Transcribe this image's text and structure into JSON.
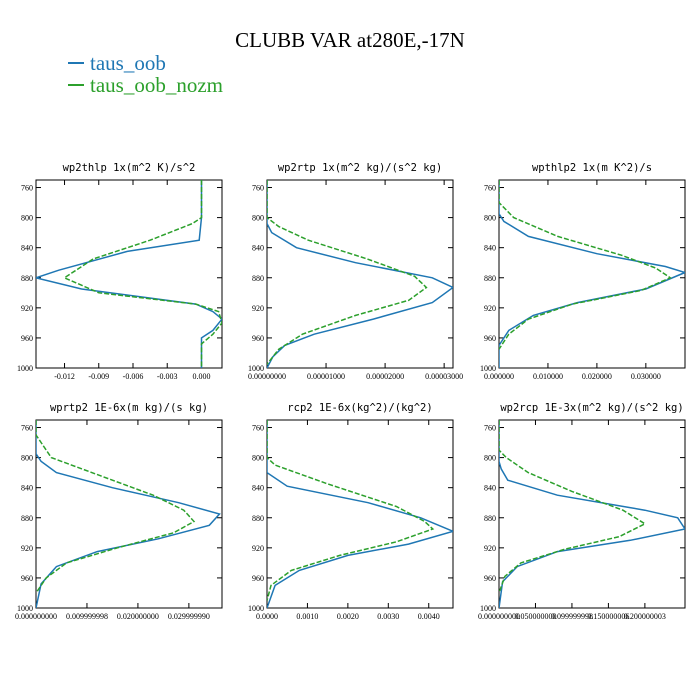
{
  "title": "CLUBB VAR at280E,-17N",
  "colors": {
    "taus_oob": "#1f77b4",
    "taus_oob_nozm": "#2ca02c"
  },
  "legend": [
    {
      "label": "taus_oob",
      "color": "#1f77b4",
      "style": "solid"
    },
    {
      "label": "taus_oob_nozm",
      "color": "#2ca02c",
      "style": "dashed"
    }
  ],
  "chart_data": [
    {
      "type": "line",
      "title": "wp2thlp  1x(m^2 K)/s^2",
      "y_ticks": [
        760,
        800,
        840,
        880,
        920,
        960,
        1000
      ],
      "x_ticks": [
        "-0.012",
        "-0.009",
        "-0.006",
        "-0.003",
        "0.000"
      ],
      "x_tick_values": [
        -0.012,
        -0.009,
        -0.006,
        -0.003,
        0.0
      ],
      "xlim": [
        -0.0145,
        0.0018
      ],
      "ylim": [
        1000,
        750
      ],
      "series": [
        {
          "name": "taus_oob",
          "points": [
            [
              0.0,
              750
            ],
            [
              0.0,
              800
            ],
            [
              -0.0002,
              830
            ],
            [
              -0.0065,
              845
            ],
            [
              -0.0125,
              870
            ],
            [
              -0.0145,
              880
            ],
            [
              -0.0105,
              895
            ],
            [
              -0.0005,
              915
            ],
            [
              0.001,
              925
            ],
            [
              0.0018,
              935
            ],
            [
              0.001,
              950
            ],
            [
              0.0,
              960
            ],
            [
              0.0,
              1000
            ]
          ]
        },
        {
          "name": "taus_oob_nozm",
          "points": [
            [
              0.0,
              750
            ],
            [
              0.0,
              800
            ],
            [
              -0.0008,
              808
            ],
            [
              -0.0045,
              830
            ],
            [
              -0.0095,
              855
            ],
            [
              -0.012,
              880
            ],
            [
              -0.009,
              900
            ],
            [
              -0.0005,
              915
            ],
            [
              0.0015,
              925
            ],
            [
              0.0018,
              940
            ],
            [
              0.001,
              955
            ],
            [
              0.0,
              968
            ],
            [
              0.0,
              1000
            ]
          ]
        }
      ]
    },
    {
      "type": "line",
      "title": "wp2rtp  1x(m^2 kg)/(s^2 kg)",
      "y_ticks": [
        760,
        800,
        840,
        880,
        920,
        960,
        1000
      ],
      "x_ticks": [
        "0.00000000",
        "0.00001000",
        "0.00002000",
        "0.00003000"
      ],
      "x_tick_values": [
        0.0,
        1e-05,
        2e-05,
        3e-05
      ],
      "xlim": [
        0.0,
        3.15e-05
      ],
      "ylim": [
        1000,
        750
      ],
      "series": [
        {
          "name": "taus_oob",
          "points": [
            [
              0.0,
              750
            ],
            [
              0.0,
              808
            ],
            [
              8e-07,
              820
            ],
            [
              5e-06,
              840
            ],
            [
              1.5e-05,
              860
            ],
            [
              2.8e-05,
              880
            ],
            [
              3.15e-05,
              893
            ],
            [
              2.8e-05,
              913
            ],
            [
              1.8e-05,
              935
            ],
            [
              8e-06,
              955
            ],
            [
              3e-06,
              970
            ],
            [
              1e-06,
              985
            ],
            [
              0.0,
              1000
            ]
          ]
        },
        {
          "name": "taus_oob_nozm",
          "points": [
            [
              0.0,
              750
            ],
            [
              0.0,
              800
            ],
            [
              2e-06,
              812
            ],
            [
              7e-06,
              830
            ],
            [
              1.7e-05,
              855
            ],
            [
              2.5e-05,
              878
            ],
            [
              2.7e-05,
              893
            ],
            [
              2.4e-05,
              910
            ],
            [
              1.5e-05,
              930
            ],
            [
              6e-06,
              955
            ],
            [
              2e-06,
              975
            ],
            [
              0.0,
              995
            ]
          ]
        }
      ]
    },
    {
      "type": "line",
      "title": "wpthlp2  1x(m K^2)/s",
      "y_ticks": [
        760,
        800,
        840,
        880,
        920,
        960,
        1000
      ],
      "x_ticks": [
        "0.000000",
        "0.010000",
        "0.020000",
        "0.030000"
      ],
      "x_tick_values": [
        0.0,
        0.01,
        0.02,
        0.03
      ],
      "xlim": [
        0.0,
        0.038
      ],
      "ylim": [
        1000,
        750
      ],
      "series": [
        {
          "name": "taus_oob",
          "points": [
            [
              0.0,
              750
            ],
            [
              0.0,
              795
            ],
            [
              0.001,
              805
            ],
            [
              0.006,
              825
            ],
            [
              0.02,
              848
            ],
            [
              0.034,
              865
            ],
            [
              0.038,
              873
            ],
            [
              0.03,
              895
            ],
            [
              0.016,
              913
            ],
            [
              0.007,
              930
            ],
            [
              0.002,
              950
            ],
            [
              0.0,
              970
            ],
            [
              0.0,
              1000
            ]
          ]
        },
        {
          "name": "taus_oob_nozm",
          "points": [
            [
              0.0,
              750
            ],
            [
              0.0,
              780
            ],
            [
              0.003,
              800
            ],
            [
              0.012,
              825
            ],
            [
              0.025,
              850
            ],
            [
              0.032,
              867
            ],
            [
              0.035,
              880
            ],
            [
              0.029,
              897
            ],
            [
              0.015,
              915
            ],
            [
              0.006,
              935
            ],
            [
              0.002,
              955
            ],
            [
              0.0,
              975
            ]
          ]
        }
      ]
    },
    {
      "type": "line",
      "title": "wprtp2  1E-6x(m kg)/(s kg)",
      "y_ticks": [
        760,
        800,
        840,
        880,
        920,
        960,
        1000
      ],
      "x_ticks": [
        "0.000000000",
        "0.009999998",
        "0.020000000",
        "0.029999990"
      ],
      "x_tick_values": [
        0.0,
        0.009999998,
        0.02,
        0.02999999
      ],
      "xlim": [
        0.0,
        0.0365
      ],
      "ylim": [
        1000,
        750
      ],
      "series": [
        {
          "name": "taus_oob",
          "points": [
            [
              0.0,
              750
            ],
            [
              0.0,
              795
            ],
            [
              0.001,
              805
            ],
            [
              0.004,
              820
            ],
            [
              0.015,
              840
            ],
            [
              0.028,
              860
            ],
            [
              0.036,
              875
            ],
            [
              0.034,
              890
            ],
            [
              0.024,
              908
            ],
            [
              0.012,
              925
            ],
            [
              0.004,
              945
            ],
            [
              0.001,
              968
            ],
            [
              0.0,
              1000
            ]
          ]
        },
        {
          "name": "taus_oob_nozm",
          "points": [
            [
              0.0,
              750
            ],
            [
              0.0,
              770
            ],
            [
              0.003,
              800
            ],
            [
              0.013,
              825
            ],
            [
              0.023,
              850
            ],
            [
              0.029,
              870
            ],
            [
              0.031,
              885
            ],
            [
              0.027,
              900
            ],
            [
              0.016,
              920
            ],
            [
              0.006,
              940
            ],
            [
              0.002,
              960
            ],
            [
              0.0,
              980
            ]
          ]
        }
      ]
    },
    {
      "type": "line",
      "title": "rcp2  1E-6x(kg^2)/(kg^2)",
      "y_ticks": [
        760,
        800,
        840,
        880,
        920,
        960,
        1000
      ],
      "x_ticks": [
        "0.0000",
        "0.0010",
        "0.0020",
        "0.0030",
        "0.0040"
      ],
      "x_tick_values": [
        0.0,
        0.001,
        0.002,
        0.003,
        0.004
      ],
      "xlim": [
        0.0,
        0.0046
      ],
      "ylim": [
        1000,
        750
      ],
      "series": [
        {
          "name": "taus_oob",
          "points": [
            [
              0.0,
              750
            ],
            [
              0.0,
              820
            ],
            [
              0.0005,
              838
            ],
            [
              0.0025,
              860
            ],
            [
              0.0038,
              880
            ],
            [
              0.0046,
              898
            ],
            [
              0.0035,
              915
            ],
            [
              0.002,
              930
            ],
            [
              0.0008,
              950
            ],
            [
              0.0002,
              970
            ],
            [
              0.0,
              1000
            ]
          ]
        },
        {
          "name": "taus_oob_nozm",
          "points": [
            [
              0.0,
              750
            ],
            [
              0.0,
              800
            ],
            [
              0.0002,
              810
            ],
            [
              0.0015,
              835
            ],
            [
              0.0032,
              865
            ],
            [
              0.0039,
              885
            ],
            [
              0.0041,
              895
            ],
            [
              0.0032,
              912
            ],
            [
              0.0018,
              930
            ],
            [
              0.0006,
              950
            ],
            [
              0.0001,
              970
            ],
            [
              0.0,
              990
            ]
          ]
        }
      ]
    },
    {
      "type": "line",
      "title": "wp2rcp  1E-3x(m^2 kg)/(s^2 kg)",
      "y_ticks": [
        760,
        800,
        840,
        880,
        920,
        960,
        1000
      ],
      "x_ticks": [
        "0.000000000",
        "0.050000000",
        "0.099999998",
        "0.150000006",
        "0.200000003"
      ],
      "x_tick_values": [
        0.0,
        0.05,
        0.1,
        0.15,
        0.2
      ],
      "xlim": [
        0.0,
        0.255
      ],
      "ylim": [
        1000,
        750
      ],
      "series": [
        {
          "name": "taus_oob",
          "points": [
            [
              0.0,
              750
            ],
            [
              0.0,
              805
            ],
            [
              0.003,
              815
            ],
            [
              0.012,
              830
            ],
            [
              0.08,
              850
            ],
            [
              0.2,
              870
            ],
            [
              0.245,
              880
            ],
            [
              0.255,
              895
            ],
            [
              0.18,
              910
            ],
            [
              0.08,
              925
            ],
            [
              0.025,
              945
            ],
            [
              0.005,
              965
            ],
            [
              0.0,
              1000
            ]
          ]
        },
        {
          "name": "taus_oob_nozm",
          "points": [
            [
              0.0,
              750
            ],
            [
              0.0,
              790
            ],
            [
              0.01,
              800
            ],
            [
              0.04,
              820
            ],
            [
              0.1,
              845
            ],
            [
              0.17,
              870
            ],
            [
              0.2,
              888
            ],
            [
              0.165,
              905
            ],
            [
              0.09,
              922
            ],
            [
              0.03,
              940
            ],
            [
              0.008,
              958
            ],
            [
              0.0,
              980
            ]
          ]
        }
      ]
    }
  ]
}
